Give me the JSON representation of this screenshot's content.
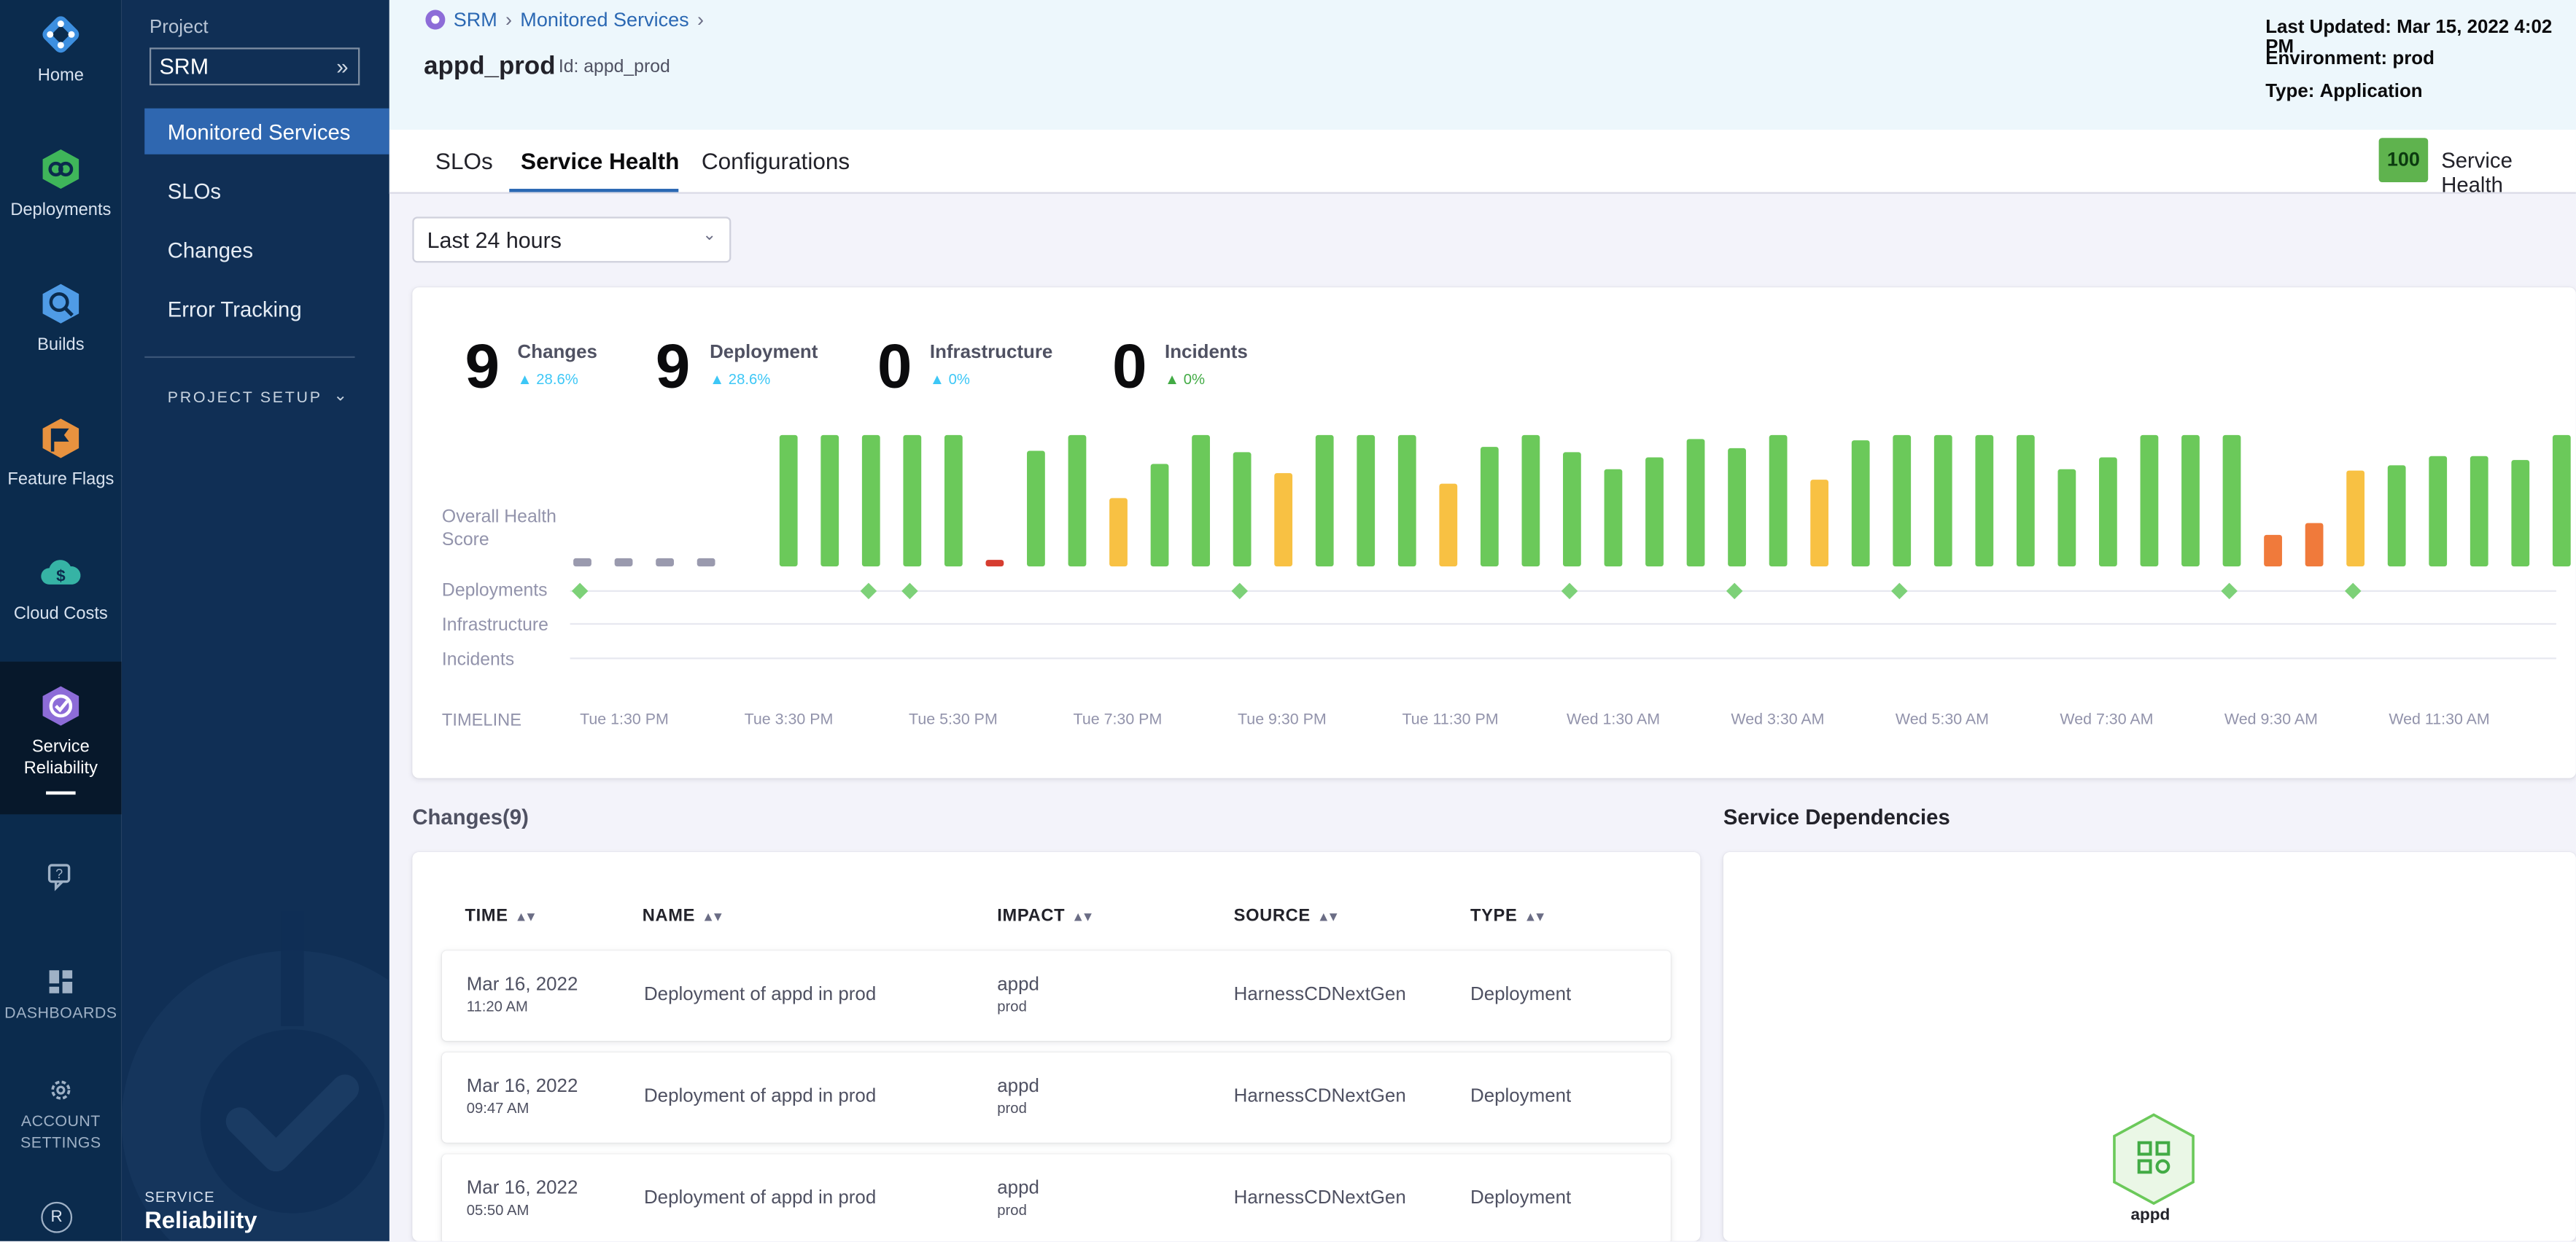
{
  "nav": {
    "items": [
      {
        "label": "Home",
        "icon": "harness-logo-icon"
      },
      {
        "label": "Deployments",
        "icon": "deployments-icon"
      },
      {
        "label": "Builds",
        "icon": "builds-icon"
      },
      {
        "label": "Feature Flags",
        "icon": "feature-flags-icon"
      },
      {
        "label": "Cloud Costs",
        "icon": "cloud-costs-icon"
      },
      {
        "label": "Service Reliability",
        "icon": "service-reliability-icon",
        "active": true
      }
    ],
    "lower": {
      "help_icon": "chat-help-icon",
      "dashboards_label": "DASHBOARDS",
      "settings_label": "ACCOUNT SETTINGS",
      "avatar_letter": "R"
    }
  },
  "subnav": {
    "project_label": "Project",
    "project_value": "SRM",
    "menu": [
      "Monitored Services",
      "SLOs",
      "Changes",
      "Error Tracking"
    ],
    "active_menu": "Monitored Services",
    "setup_label": "PROJECT SETUP",
    "footer_top": "SERVICE",
    "footer_bottom": "Reliability"
  },
  "header": {
    "breadcrumb": [
      "SRM",
      "Monitored Services"
    ],
    "title": "appd_prod",
    "id_label": "Id: appd_prod",
    "last_updated_label": "Last Updated:",
    "last_updated_value": "Mar 15, 2022 4:02 PM",
    "environment_label": "Environment:",
    "environment_value": "prod",
    "type_label": "Type:",
    "type_value": "Application"
  },
  "tabs": [
    "SLOs",
    "Service Health",
    "Configurations"
  ],
  "active_tab": "Service Health",
  "health": {
    "score": "100",
    "label": "Service Health",
    "color": "#5fb34e"
  },
  "time_range": "Last 24 hours",
  "stats": [
    {
      "value": "9",
      "label": "Changes",
      "pct": "28.6%"
    },
    {
      "value": "9",
      "label": "Deployment",
      "pct": "28.6%"
    },
    {
      "value": "0",
      "label": "Infrastructure",
      "pct": "0%"
    },
    {
      "value": "0",
      "label": "Incidents",
      "pct": "0%"
    }
  ],
  "timeline": {
    "row_labels": [
      "Overall Health Score",
      "Deployments",
      "Infrastructure",
      "Incidents"
    ],
    "timeline_label": "TIMELINE",
    "ticks": [
      "Tue 1:30 PM",
      "Tue 3:30 PM",
      "Tue 5:30 PM",
      "Tue 7:30 PM",
      "Tue 9:30 PM",
      "Tue 11:30 PM",
      "Wed 1:30 AM",
      "Wed 3:30 AM",
      "Wed 5:30 AM",
      "Wed 7:30 AM",
      "Wed 9:30 AM",
      "Wed 11:30 AM"
    ],
    "colors": {
      "nodata": "#9a9aae",
      "healthy": "#6bc95a",
      "warning": "#f8c143",
      "degraded": "#f07a3b",
      "critical": "#d63d30",
      "deployment": "#7dd178"
    }
  },
  "chart_data": {
    "type": "bar",
    "title": "",
    "xlabel": "TIMELINE",
    "ylabel": "Overall Health Score",
    "ylim": [
      0,
      100
    ],
    "values": [
      10,
      10,
      10,
      10,
      null,
      100,
      100,
      100,
      100,
      100,
      5,
      88,
      100,
      52,
      78,
      100,
      87,
      71,
      100,
      100,
      100,
      63,
      91,
      100,
      87,
      74,
      83,
      97,
      90,
      100,
      66,
      96,
      100,
      100,
      100,
      100,
      74,
      83,
      100,
      100,
      100,
      24,
      33,
      73,
      77,
      84,
      84,
      81,
      100
    ],
    "status": [
      "nodata",
      "nodata",
      "nodata",
      "nodata",
      "none",
      "healthy",
      "healthy",
      "healthy",
      "healthy",
      "healthy",
      "critical",
      "healthy",
      "healthy",
      "warning",
      "healthy",
      "healthy",
      "healthy",
      "warning",
      "healthy",
      "healthy",
      "healthy",
      "warning",
      "healthy",
      "healthy",
      "healthy",
      "healthy",
      "healthy",
      "healthy",
      "healthy",
      "healthy",
      "warning",
      "healthy",
      "healthy",
      "healthy",
      "healthy",
      "healthy",
      "healthy",
      "healthy",
      "healthy",
      "healthy",
      "healthy",
      "degraded",
      "degraded",
      "warning",
      "healthy",
      "healthy",
      "healthy",
      "healthy",
      "healthy"
    ],
    "deployment_slots": [
      0,
      7,
      8,
      16,
      24,
      28,
      32,
      40,
      43
    ]
  },
  "changes": {
    "title": "Changes(9)",
    "columns": [
      "TIME",
      "NAME",
      "IMPACT",
      "SOURCE",
      "TYPE"
    ],
    "rows": [
      {
        "date": "Mar 16, 2022",
        "time": "11:20 AM",
        "name": "Deployment of appd in prod",
        "impact": "appd",
        "impact_env": "prod",
        "source": "HarnessCDNextGen",
        "type": "Deployment"
      },
      {
        "date": "Mar 16, 2022",
        "time": "09:47 AM",
        "name": "Deployment of appd in prod",
        "impact": "appd",
        "impact_env": "prod",
        "source": "HarnessCDNextGen",
        "type": "Deployment"
      },
      {
        "date": "Mar 16, 2022",
        "time": "05:50 AM",
        "name": "Deployment of appd in prod",
        "impact": "appd",
        "impact_env": "prod",
        "source": "HarnessCDNextGen",
        "type": "Deployment"
      }
    ]
  },
  "dependencies": {
    "title": "Service Dependencies",
    "node_label": "appd",
    "node_icon": "service-grid-icon"
  }
}
